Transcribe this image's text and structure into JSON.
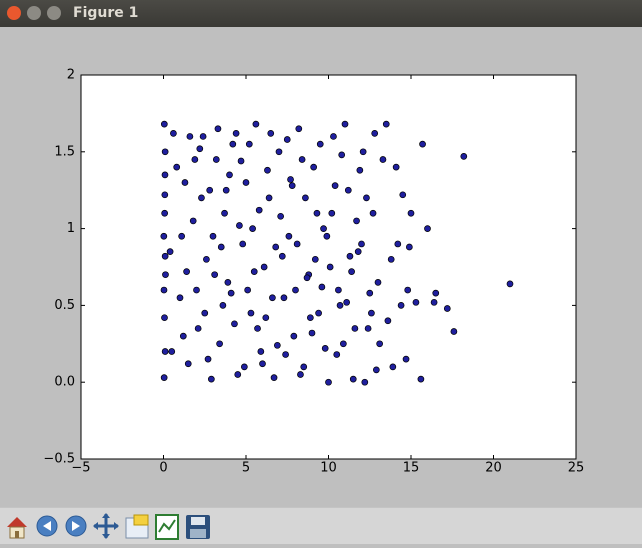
{
  "window": {
    "title": "Figure 1"
  },
  "chart_data": {
    "type": "scatter",
    "color": "#1f1f9e",
    "x": [
      0.05,
      0.1,
      0.08,
      0.02,
      0.12,
      0.06,
      0.1,
      0.04,
      0.09,
      0.03,
      0.6,
      1.0,
      1.3,
      1.5,
      1.8,
      2.1,
      2.4,
      2.6,
      2.9,
      3.2,
      3.4,
      3.7,
      3.9,
      4.2,
      4.5,
      4.8,
      5.0,
      5.3,
      5.6,
      5.9,
      6.1,
      6.4,
      6.7,
      7.0,
      7.3,
      7.6,
      7.9,
      8.2,
      8.5,
      8.8,
      9.1,
      9.4,
      9.7,
      10.0,
      10.3,
      10.6,
      10.9,
      11.2,
      11.5,
      11.8,
      12.1,
      12.4,
      12.7,
      13.0,
      13.3,
      13.6,
      13.9,
      14.2,
      14.5,
      14.8,
      0.4,
      0.8,
      1.2,
      1.6,
      2.0,
      2.3,
      2.7,
      3.0,
      3.3,
      3.6,
      4.0,
      4.3,
      4.6,
      4.9,
      5.2,
      5.5,
      5.8,
      6.2,
      6.5,
      6.8,
      7.1,
      7.4,
      7.7,
      8.0,
      8.3,
      8.6,
      8.9,
      9.2,
      9.5,
      9.8,
      10.1,
      10.4,
      10.7,
      11.0,
      11.3,
      11.6,
      11.9,
      12.2,
      12.5,
      12.8,
      13.1,
      13.5,
      13.8,
      14.1,
      14.4,
      14.7,
      15.0,
      15.3,
      0.1,
      0.07,
      1.1,
      1.9,
      2.5,
      3.1,
      3.8,
      4.4,
      5.1,
      5.7,
      6.3,
      6.9,
      7.5,
      8.1,
      8.7,
      9.3,
      9.9,
      10.5,
      11.1,
      11.7,
      12.3,
      12.9,
      0.5,
      1.4,
      2.2,
      2.8,
      3.5,
      4.1,
      4.7,
      5.4,
      6.0,
      6.6,
      7.2,
      7.8,
      8.4,
      9.0,
      9.6,
      10.2,
      10.8,
      11.4,
      12.0,
      12.6,
      15.6,
      15.7,
      16.0,
      16.4,
      16.5,
      17.2,
      17.6,
      18.2,
      21.0,
      14.9
    ],
    "values": [
      1.68,
      1.5,
      1.22,
      0.95,
      0.7,
      0.42,
      0.2,
      0.03,
      1.35,
      0.6,
      1.62,
      0.55,
      1.3,
      0.12,
      1.05,
      0.35,
      1.6,
      0.8,
      0.02,
      1.45,
      0.25,
      1.1,
      0.65,
      1.55,
      0.05,
      0.9,
      1.3,
      0.45,
      1.68,
      0.2,
      0.75,
      1.2,
      0.03,
      1.5,
      0.55,
      0.95,
      0.3,
      1.65,
      0.1,
      0.7,
      1.4,
      0.45,
      1.0,
      0.0,
      1.6,
      0.6,
      0.25,
      1.25,
      0.02,
      0.85,
      1.5,
      0.35,
      1.1,
      0.65,
      1.45,
      0.4,
      0.1,
      0.9,
      1.22,
      0.6,
      0.85,
      1.4,
      0.3,
      1.6,
      0.6,
      1.2,
      0.15,
      0.95,
      1.65,
      0.5,
      1.35,
      0.38,
      1.02,
      0.1,
      1.55,
      0.72,
      1.12,
      0.42,
      1.62,
      0.88,
      1.08,
      0.18,
      1.32,
      0.6,
      0.05,
      1.2,
      0.42,
      0.8,
      1.55,
      0.22,
      0.75,
      1.28,
      0.5,
      1.68,
      0.82,
      0.35,
      1.38,
      0.0,
      0.58,
      1.62,
      0.25,
      1.68,
      0.8,
      1.4,
      0.5,
      0.15,
      1.1,
      0.52,
      0.82,
      1.1,
      0.95,
      1.45,
      0.45,
      0.7,
      1.25,
      1.62,
      0.6,
      0.35,
      1.38,
      0.24,
      1.58,
      0.9,
      0.68,
      1.1,
      0.95,
      0.18,
      0.52,
      1.05,
      1.2,
      0.08,
      0.2,
      0.72,
      1.52,
      1.25,
      0.88,
      0.58,
      1.44,
      1.0,
      0.12,
      0.55,
      0.82,
      1.28,
      1.45,
      0.32,
      0.62,
      1.1,
      1.48,
      0.72,
      0.9,
      0.45,
      0.02,
      1.55,
      1.0,
      0.52,
      0.58,
      0.48,
      0.33,
      1.47,
      0.64,
      0.88
    ],
    "xlim": [
      -5,
      25
    ],
    "xticks": [
      {
        "value": -5,
        "label": "−5"
      },
      0,
      5,
      10,
      15,
      20,
      25
    ],
    "ylim": [
      -0.5,
      2.0
    ],
    "yticks": [
      {
        "value": -0.5,
        "label": "−0.5"
      },
      {
        "value": 0,
        "label": "0.0"
      },
      0.5,
      1.0,
      1.5,
      2.0
    ]
  }
}
